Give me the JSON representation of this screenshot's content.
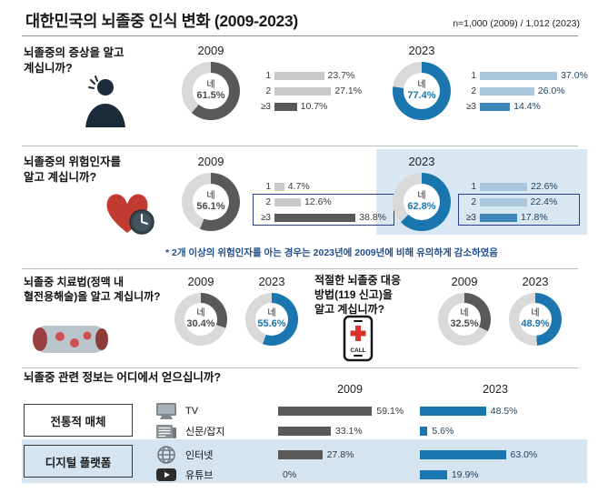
{
  "header": {
    "title": "대한민국의 뇌졸중 인식 변화 (2009-2023)",
    "sample": "n=1,000 (2009) / 1,012 (2023)"
  },
  "labels": {
    "yes": "네"
  },
  "colors": {
    "blue": "#1a76ae",
    "gray": "#595959",
    "track": "#d9d9d9",
    "blue_light": "#a9c7dd",
    "blue_mid": "#3e86b8",
    "gray_light": "#c9c9c9",
    "panel_bg": "#d9e7f2",
    "band_bg": "#d4e4f0",
    "highlight_outline": "#2c3e8f",
    "footnote_text": "#1f4e8c"
  },
  "chart_data": [
    {
      "id": "symptoms",
      "type": "donut-bar",
      "title": "뇌졸중의 증상을 알고 계십니까?",
      "title_lines": [
        "뇌졸중의 증상을 알고",
        "계십니까?"
      ],
      "bar_categories": [
        "1",
        "2",
        "≥3"
      ],
      "series": [
        {
          "year": "2009",
          "yes_pct": 61.5,
          "yes_label": "61.5%",
          "counts": [
            23.7,
            27.1,
            10.7
          ],
          "count_labels": [
            "23.7%",
            "27.1%",
            "10.7%"
          ]
        },
        {
          "year": "2023",
          "yes_pct": 77.4,
          "yes_label": "77.4%",
          "counts": [
            37.0,
            26.0,
            14.4
          ],
          "count_labels": [
            "37.0%",
            "26.0%",
            "14.4%"
          ]
        }
      ]
    },
    {
      "id": "risk_factors",
      "type": "donut-bar",
      "title": "뇌졸중의 위험인자를 알고 계십니까?",
      "title_lines": [
        "뇌졸중의 위험인자를",
        "알고 계십니까?"
      ],
      "bar_categories": [
        "1",
        "2",
        "≥3"
      ],
      "series": [
        {
          "year": "2009",
          "yes_pct": 56.1,
          "yes_label": "56.1%",
          "counts": [
            4.7,
            12.6,
            38.8
          ],
          "count_labels": [
            "4.7%",
            "12.6%",
            "38.8%"
          ]
        },
        {
          "year": "2023",
          "yes_pct": 62.8,
          "yes_label": "62.8%",
          "counts": [
            22.6,
            22.4,
            17.8
          ],
          "count_labels": [
            "22.6%",
            "22.4%",
            "17.8%"
          ]
        }
      ],
      "footnote": "* 2개 이상의 위험인자를 아는 경우는 2023년에 2009년에 비해 유의하게 감소하였음"
    },
    {
      "id": "treatment",
      "type": "donut",
      "title": "뇌졸중 치료법(정맥 내 혈전용해술)을 알고 계십니까?",
      "title_lines": [
        "뇌졸중 치료법(정맥 내",
        "혈전용해술)을 알고 계십니까?"
      ],
      "series": [
        {
          "year": "2009",
          "yes_pct": 30.4,
          "yes_label": "30.4%"
        },
        {
          "year": "2023",
          "yes_pct": 55.6,
          "yes_label": "55.6%"
        }
      ]
    },
    {
      "id": "response",
      "type": "donut",
      "title": "적절한 뇌졸중 대응 방법(119 신고)을 알고 계십니까?",
      "title_lines": [
        "적절한 뇌졸중 대응",
        "방법(119 신고)을",
        "알고 계십니까?"
      ],
      "series": [
        {
          "year": "2009",
          "yes_pct": 32.5,
          "yes_label": "32.5%"
        },
        {
          "year": "2023",
          "yes_pct": 48.9,
          "yes_label": "48.9%"
        }
      ]
    },
    {
      "id": "sources",
      "type": "bar",
      "title": "뇌졸중 관련 정보는 어디에서 얻으십니까?",
      "col_years": [
        "2009",
        "2023"
      ],
      "groups": [
        {
          "label": "전통적 매체",
          "rows": [
            {
              "category": "TV",
              "icon": "tv-icon",
              "y2009": 59.1,
              "y2009_label": "59.1%",
              "y2023": 48.5,
              "y2023_label": "48.5%"
            },
            {
              "category": "신문/잡지",
              "icon": "newspaper-icon",
              "y2009": 33.1,
              "y2009_label": "33.1%",
              "y2023": 5.6,
              "y2023_label": "5.6%"
            }
          ]
        },
        {
          "label": "디지털 플랫폼",
          "rows": [
            {
              "category": "인터넷",
              "icon": "globe-icon",
              "y2009": 27.8,
              "y2009_label": "27.8%",
              "y2023": 63.0,
              "y2023_label": "63.0%"
            },
            {
              "category": "유튜브",
              "icon": "youtube-icon",
              "y2009": 0,
              "y2009_label": "0%",
              "y2023": 19.9,
              "y2023_label": "19.9%"
            }
          ]
        }
      ]
    }
  ]
}
